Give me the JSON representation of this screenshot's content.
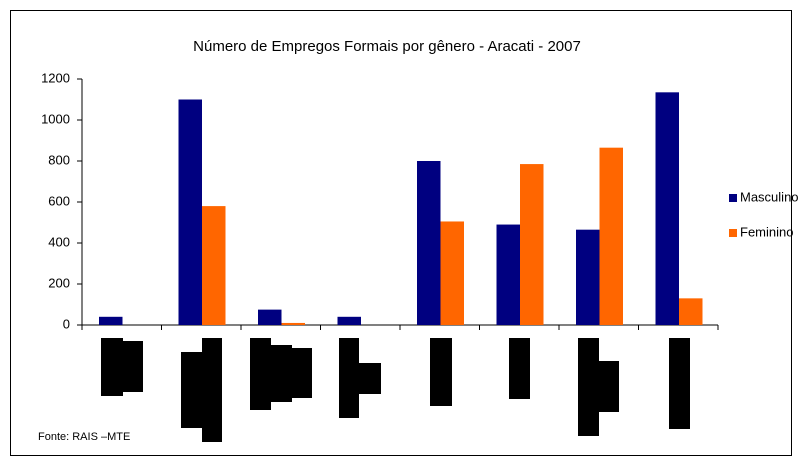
{
  "chart_data": {
    "type": "bar",
    "title": "Número de Empregos Formais por gênero - Aracati - 2007",
    "categories": [
      null,
      null,
      null,
      null,
      null,
      null,
      null,
      null
    ],
    "series": [
      {
        "name": "Masculino",
        "color": "#000080",
        "values": [
          40,
          1100,
          75,
          40,
          800,
          490,
          465,
          1135
        ]
      },
      {
        "name": "Feminino",
        "color": "#FF6600",
        "values": [
          0,
          580,
          10,
          0,
          505,
          785,
          865,
          130
        ]
      }
    ],
    "ylim": [
      0,
      1200
    ],
    "yticks": [
      0,
      200,
      400,
      600,
      800,
      1000,
      1200
    ],
    "legend": "right",
    "source": "Fonte: RAIS –MTE"
  }
}
